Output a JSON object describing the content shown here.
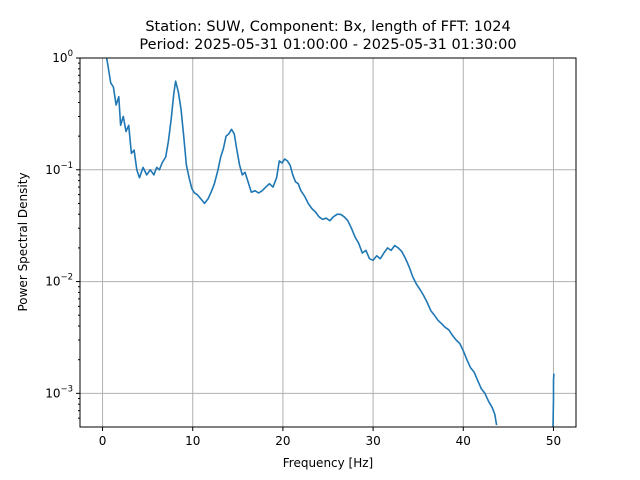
{
  "chart_data": {
    "type": "line",
    "title_line1": "Station: SUW, Component: Bx, length of FFT: 1024",
    "title_line2": "Period: 2025-05-31 01:00:00 - 2025-05-31 01:30:00",
    "xlabel": "Frequency [Hz]",
    "ylabel": "Power Spectral Density",
    "yscale": "log",
    "xlim": [
      -2.5,
      52.5
    ],
    "ylim": [
      0.0005,
      1
    ],
    "xticks": [
      0,
      10,
      20,
      30,
      40,
      50
    ],
    "xtick_labels": [
      "0",
      "10",
      "20",
      "30",
      "40",
      "50"
    ],
    "yticks": [
      0.001,
      0.01,
      0.1,
      1
    ],
    "ytick_labels": [
      {
        "base": "10",
        "exp": "−3"
      },
      {
        "base": "10",
        "exp": "−2"
      },
      {
        "base": "10",
        "exp": "−1"
      },
      {
        "base": "10",
        "exp": "0"
      }
    ],
    "grid": true,
    "series": [
      {
        "color": "#1f77b4",
        "x": [
          0.4,
          0.6,
          0.9,
          1.2,
          1.5,
          1.8,
          2.0,
          2.3,
          2.6,
          2.9,
          3.2,
          3.5,
          3.8,
          4.1,
          4.5,
          4.9,
          5.3,
          5.7,
          6.0,
          6.3,
          6.6,
          7.0,
          7.3,
          7.6,
          7.9,
          8.1,
          8.4,
          8.7,
          9.0,
          9.3,
          9.6,
          9.9,
          10.2,
          10.5,
          10.9,
          11.3,
          11.7,
          12.1,
          12.4,
          12.8,
          13.1,
          13.4,
          13.7,
          14.0,
          14.3,
          14.6,
          14.9,
          15.2,
          15.5,
          15.8,
          16.1,
          16.5,
          16.9,
          17.3,
          17.7,
          18.1,
          18.5,
          18.9,
          19.3,
          19.6,
          19.9,
          20.2,
          20.5,
          20.8,
          21.1,
          21.4,
          21.7,
          22.0,
          22.4,
          22.8,
          23.2,
          23.6,
          24.0,
          24.4,
          24.8,
          25.2,
          25.6,
          26.0,
          26.4,
          26.8,
          27.2,
          27.6,
          28.0,
          28.4,
          28.8,
          29.2,
          29.6,
          30.0,
          30.4,
          30.8,
          31.2,
          31.6,
          32.0,
          32.4,
          32.8,
          33.2,
          33.6,
          34.0,
          34.4,
          34.8,
          35.2,
          35.6,
          36.0,
          36.4,
          36.8,
          37.2,
          37.6,
          38.0,
          38.4,
          38.8,
          39.2,
          39.6,
          40.0,
          40.4,
          40.8,
          41.2,
          41.6,
          42.0,
          42.4,
          42.8,
          43.2,
          43.5,
          43.7
        ],
        "y": [
          1.05,
          0.85,
          0.6,
          0.55,
          0.38,
          0.45,
          0.25,
          0.3,
          0.22,
          0.25,
          0.14,
          0.15,
          0.1,
          0.085,
          0.105,
          0.09,
          0.1,
          0.09,
          0.105,
          0.1,
          0.115,
          0.13,
          0.18,
          0.28,
          0.48,
          0.62,
          0.5,
          0.35,
          0.2,
          0.11,
          0.085,
          0.068,
          0.062,
          0.06,
          0.055,
          0.05,
          0.055,
          0.065,
          0.075,
          0.1,
          0.13,
          0.155,
          0.2,
          0.21,
          0.23,
          0.21,
          0.15,
          0.11,
          0.09,
          0.095,
          0.08,
          0.063,
          0.065,
          0.062,
          0.065,
          0.07,
          0.075,
          0.07,
          0.085,
          0.12,
          0.115,
          0.125,
          0.12,
          0.11,
          0.09,
          0.078,
          0.075,
          0.065,
          0.058,
          0.05,
          0.045,
          0.042,
          0.038,
          0.036,
          0.037,
          0.035,
          0.038,
          0.04,
          0.04,
          0.038,
          0.035,
          0.03,
          0.025,
          0.022,
          0.018,
          0.019,
          0.016,
          0.0155,
          0.017,
          0.016,
          0.018,
          0.02,
          0.019,
          0.021,
          0.02,
          0.0185,
          0.016,
          0.0135,
          0.011,
          0.0095,
          0.0085,
          0.0075,
          0.0065,
          0.0055,
          0.005,
          0.0045,
          0.0042,
          0.0039,
          0.0037,
          0.0033,
          0.003,
          0.0028,
          0.0024,
          0.002,
          0.0017,
          0.00155,
          0.0013,
          0.0011,
          0.001,
          0.00085,
          0.00075,
          0.00065,
          0.00052
        ]
      },
      {
        "color": "#1f77b4",
        "x": [
          49.95,
          50.0,
          50.0,
          50.05
        ],
        "y": [
          0.0005,
          0.0009,
          0.0013,
          0.0015
        ]
      }
    ]
  }
}
